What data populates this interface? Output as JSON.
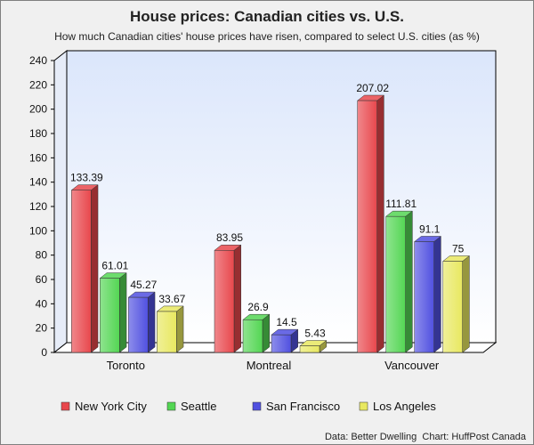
{
  "chart_data": {
    "type": "bar",
    "title": "House prices: Canadian cities vs. U.S.",
    "subtitle": "How much Canadian cities' house prices have risen, compared to select U.S. cities (as %)",
    "categories": [
      "Toronto",
      "Montreal",
      "Vancouver"
    ],
    "series": [
      {
        "name": "New York City",
        "values": [
          133.39,
          83.95,
          207.02
        ],
        "labels": [
          "133.39",
          "83.95",
          "207.02"
        ],
        "color": "#e8474c"
      },
      {
        "name": "Seattle",
        "values": [
          61.01,
          26.9,
          111.81
        ],
        "labels": [
          "61.01",
          "26.9",
          "111.81"
        ],
        "color": "#53d653"
      },
      {
        "name": "San Francisco",
        "values": [
          45.27,
          14.5,
          91.1
        ],
        "labels": [
          "45.27",
          "14.5",
          "91.1"
        ],
        "color": "#5050e0"
      },
      {
        "name": "Los Angeles",
        "values": [
          33.67,
          5.43,
          75
        ],
        "labels": [
          "33.67",
          "5.43",
          "75"
        ],
        "color": "#e8e860"
      }
    ],
    "y_ticks": [
      "0",
      "20",
      "40",
      "60",
      "80",
      "100",
      "120",
      "140",
      "160",
      "180",
      "200",
      "220",
      "240"
    ],
    "ylim": [
      0,
      240
    ],
    "grid": false,
    "style": "3d-bars",
    "plot_background": "#dbe6fb",
    "legend_position": "bottom",
    "source": "Data: Better Dwelling  Chart: HuffPost Canada"
  }
}
